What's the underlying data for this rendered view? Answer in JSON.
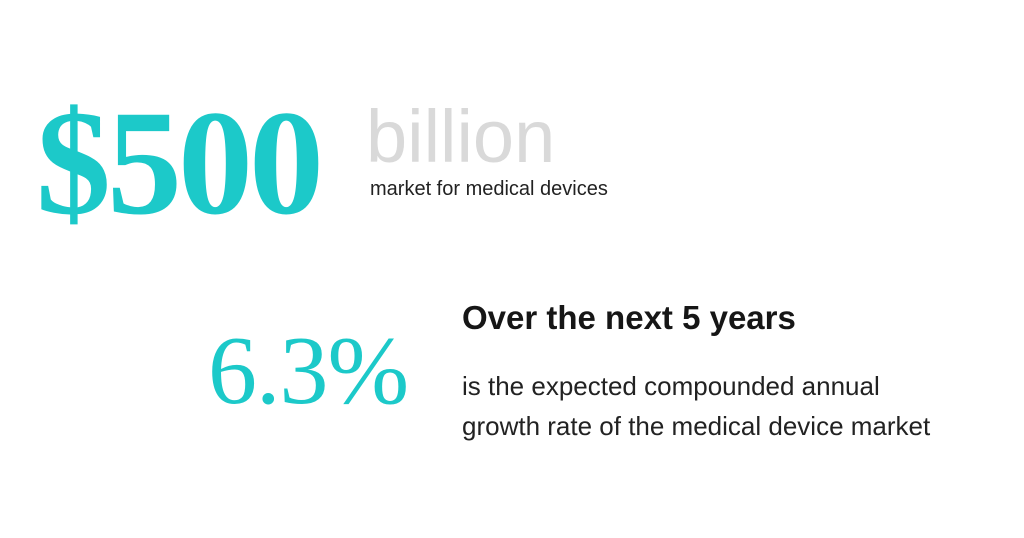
{
  "market_stat": {
    "amount": "$500",
    "unit": "billion",
    "caption": "market for medical devices"
  },
  "growth_stat": {
    "rate": "6.3%",
    "heading": "Over the next 5 years",
    "description_line_1": "is the expected compounded annual",
    "description_line_2": "growth rate of the medical device market"
  },
  "colors": {
    "accent": "#1cc9c9",
    "muted": "#d9d9d9",
    "text": "#222222"
  }
}
